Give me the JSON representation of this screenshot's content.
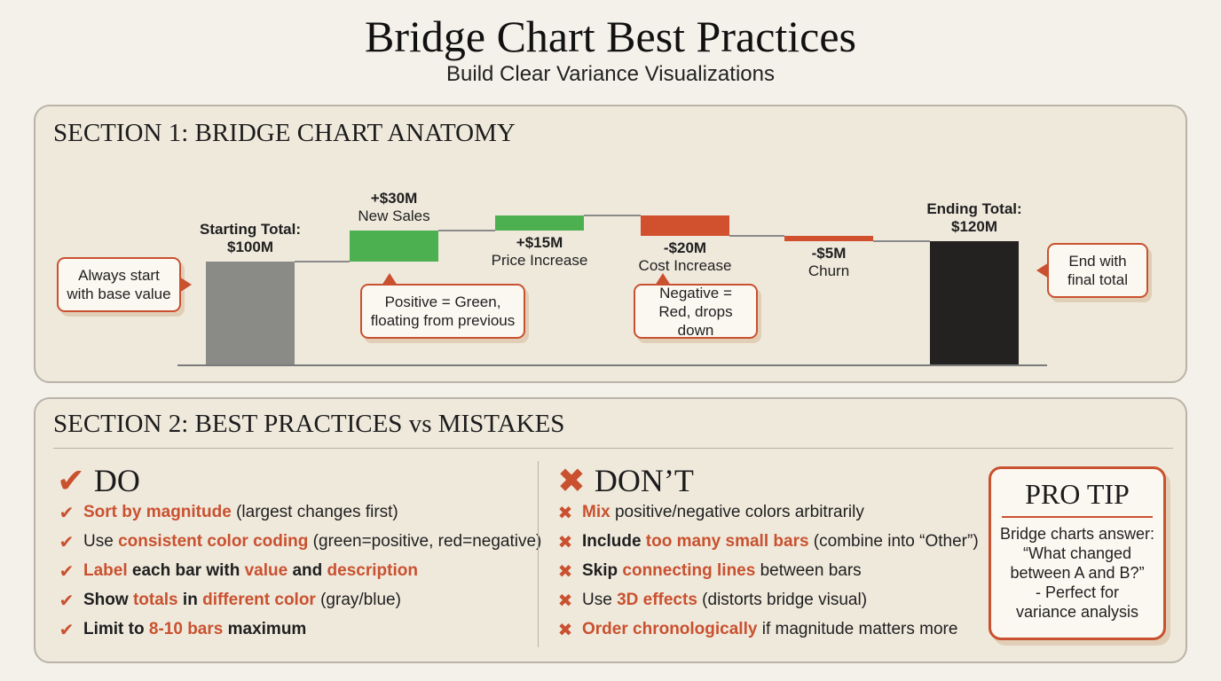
{
  "title": "Bridge Chart Best Practices",
  "subtitle": "Build Clear Variance Visualizations",
  "section1": {
    "title": "SECTION 1: BRIDGE CHART ANATOMY",
    "callouts": {
      "start": "Always start with base value",
      "positive": "Positive = Green, floating from previous",
      "negative": "Negative = Red, drops down",
      "end": "End with final total"
    }
  },
  "chart_data": {
    "type": "waterfall",
    "unit": "$M",
    "steps": [
      {
        "value_label": "Starting Total:",
        "value_label2": "$100M",
        "kind": "total",
        "value": 100,
        "color": "#8a8a87"
      },
      {
        "value_label": "+$30M",
        "name": "New Sales",
        "kind": "increase",
        "value": 30,
        "color": "#4caf50"
      },
      {
        "value_label": "+$15M",
        "name": "Price Increase",
        "kind": "increase",
        "value": 15,
        "color": "#4caf50"
      },
      {
        "value_label": "-$20M",
        "name": "Cost Increase",
        "kind": "decrease",
        "value": -20,
        "color": "#d1512f"
      },
      {
        "value_label": "-$5M",
        "name": "Churn",
        "kind": "decrease",
        "value": -5,
        "color": "#d1512f"
      },
      {
        "value_label": "Ending Total:",
        "value_label2": "$120M",
        "kind": "total",
        "value": 120,
        "color": "#242220"
      }
    ]
  },
  "section2": {
    "title": "SECTION 2: BEST PRACTICES vs MISTAKES",
    "do_heading": "DO",
    "dont_heading": "DON’T",
    "do_items": [
      [
        [
          "h",
          "Sort by magnitude"
        ],
        [
          "n",
          " (largest changes first)"
        ]
      ],
      [
        [
          "n",
          "Use "
        ],
        [
          "h",
          "consistent color coding"
        ],
        [
          "n",
          " (green=positive, red=negative)"
        ]
      ],
      [
        [
          "h",
          "Label"
        ],
        [
          "b",
          " each bar with "
        ],
        [
          "h",
          "value"
        ],
        [
          "b",
          " and "
        ],
        [
          "h",
          "description"
        ]
      ],
      [
        [
          "b",
          "Show "
        ],
        [
          "h",
          "totals"
        ],
        [
          "b",
          " in "
        ],
        [
          "h",
          "different color"
        ],
        [
          "n",
          " (gray/blue)"
        ]
      ],
      [
        [
          "b",
          "Limit to "
        ],
        [
          "h",
          "8-10 bars"
        ],
        [
          "b",
          " maximum"
        ]
      ]
    ],
    "dont_items": [
      [
        [
          "h",
          "Mix"
        ],
        [
          "n",
          " positive/negative colors arbitrarily"
        ]
      ],
      [
        [
          "b",
          "Include "
        ],
        [
          "h",
          "too many small bars"
        ],
        [
          "n",
          " (combine into “Other”)"
        ]
      ],
      [
        [
          "b",
          "Skip "
        ],
        [
          "h",
          "connecting lines"
        ],
        [
          "n",
          " between bars"
        ]
      ],
      [
        [
          "n",
          "Use "
        ],
        [
          "h",
          "3D effects"
        ],
        [
          "n",
          " (distorts bridge visual)"
        ]
      ],
      [
        [
          "h",
          "Order chronologically"
        ],
        [
          "n",
          " if magnitude matters more"
        ]
      ]
    ],
    "pro_tip": {
      "title": "PRO TIP",
      "lines": [
        "Bridge charts answer:",
        "“What changed",
        "between A and B?”",
        "- Perfect for",
        "variance analysis"
      ]
    }
  },
  "icons": {
    "do": "check-icon",
    "dont": "cross-icon"
  }
}
